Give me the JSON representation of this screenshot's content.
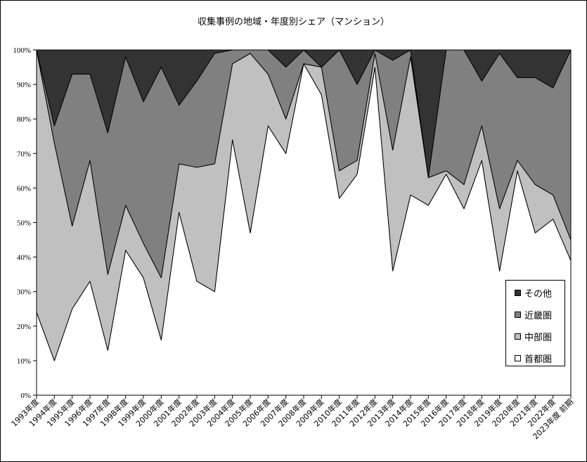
{
  "chart_data": {
    "type": "area",
    "stacked": true,
    "percent": true,
    "title": "収集事例の地域・年度別シェア（マンション）",
    "categories": [
      "1993年度",
      "1994年度",
      "1995年度",
      "1996年度",
      "1997年度",
      "1998年度",
      "1999年度",
      "2000年度",
      "2001年度",
      "2002年度",
      "2003年度",
      "2004年度",
      "2005年度",
      "2006年度",
      "2007年度",
      "2008年度",
      "2009年度",
      "2010年度",
      "2011年度",
      "2012年度",
      "2013年度",
      "2014年度",
      "2015年度",
      "2016年度",
      "2017年度",
      "2018年度",
      "2019年度",
      "2020年度",
      "2021年度",
      "2022年度",
      "2023年度 前期"
    ],
    "ylim": [
      0,
      100
    ],
    "yticks": [
      "0%",
      "10%",
      "20%",
      "30%",
      "40%",
      "50%",
      "60%",
      "70%",
      "80%",
      "90%",
      "100%"
    ],
    "series": [
      {
        "name": "首都圏",
        "color": "#ffffff",
        "values": [
          24,
          10,
          25,
          33,
          13,
          42,
          34,
          16,
          53,
          33,
          30,
          74,
          47,
          78,
          70,
          96,
          87,
          57,
          64,
          95,
          36,
          58,
          55,
          64,
          54,
          68,
          36,
          65,
          47,
          51,
          39
        ]
      },
      {
        "name": "中部圏",
        "color": "#c0c0c0",
        "values": [
          76,
          63,
          24,
          35,
          22,
          13,
          10,
          18,
          14,
          33,
          37,
          22,
          52,
          15,
          10,
          0,
          8,
          8,
          4,
          4,
          35,
          40,
          8,
          1,
          7,
          10,
          18,
          3,
          14,
          7,
          6
        ]
      },
      {
        "name": "近畿圏",
        "color": "#808080",
        "values": [
          0,
          5,
          44,
          25,
          41,
          43,
          41,
          61,
          17,
          25,
          32,
          4,
          1,
          7,
          15,
          4,
          0,
          35,
          22,
          1,
          26,
          2,
          0,
          35,
          39,
          13,
          45,
          24,
          31,
          31,
          55
        ]
      },
      {
        "name": "その他",
        "color": "#333333",
        "values": [
          0,
          22,
          7,
          7,
          24,
          2,
          15,
          5,
          16,
          9,
          1,
          0,
          0,
          0,
          5,
          0,
          5,
          0,
          10,
          0,
          3,
          0,
          37,
          0,
          0,
          9,
          1,
          8,
          8,
          11,
          0
        ]
      }
    ],
    "legend": {
      "position": "right",
      "order": [
        "その他",
        "近畿圏",
        "中部圏",
        "首都圏"
      ]
    },
    "grid": false
  }
}
